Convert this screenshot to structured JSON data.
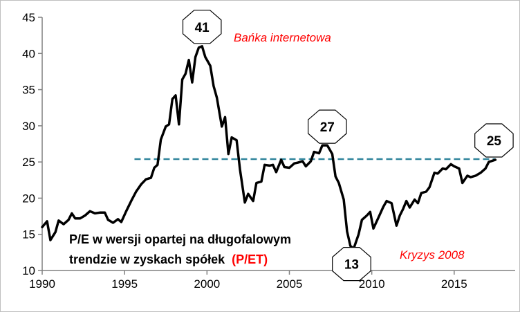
{
  "chart_data": {
    "type": "line",
    "title": "",
    "xlabel": "",
    "ylabel": "",
    "xlim": [
      1990,
      2018.7
    ],
    "ylim": [
      10,
      45
    ],
    "x_ticks": [
      "1990",
      "1995",
      "2000",
      "2005",
      "2010",
      "2015"
    ],
    "y_ticks": [
      "10",
      "15",
      "20",
      "25",
      "30",
      "35",
      "40",
      "45"
    ],
    "grid": false,
    "legend": "none",
    "line_color": "#000000",
    "reference_line": {
      "value": 25.4,
      "x_start": 1995.6,
      "x_end": 2017.5,
      "color": "#31859c",
      "style": "dashed"
    },
    "series": [
      {
        "values": [
          [
            1990.0,
            16.0
          ],
          [
            1990.3,
            16.8
          ],
          [
            1990.5,
            14.2
          ],
          [
            1990.8,
            15.3
          ],
          [
            1991.0,
            16.9
          ],
          [
            1991.3,
            16.4
          ],
          [
            1991.6,
            17.0
          ],
          [
            1991.8,
            17.9
          ],
          [
            1992.0,
            17.2
          ],
          [
            1992.3,
            17.2
          ],
          [
            1992.6,
            17.6
          ],
          [
            1992.9,
            18.2
          ],
          [
            1993.2,
            17.9
          ],
          [
            1993.5,
            18.0
          ],
          [
            1993.8,
            18.0
          ],
          [
            1994.0,
            17.0
          ],
          [
            1994.3,
            16.6
          ],
          [
            1994.6,
            17.1
          ],
          [
            1994.8,
            16.7
          ],
          [
            1995.1,
            18.2
          ],
          [
            1995.4,
            19.6
          ],
          [
            1995.7,
            20.9
          ],
          [
            1996.0,
            21.9
          ],
          [
            1996.3,
            22.6
          ],
          [
            1996.6,
            22.8
          ],
          [
            1996.8,
            24.2
          ],
          [
            1997.0,
            24.6
          ],
          [
            1997.2,
            28.1
          ],
          [
            1997.5,
            29.9
          ],
          [
            1997.7,
            30.2
          ],
          [
            1997.9,
            33.7
          ],
          [
            1998.1,
            34.2
          ],
          [
            1998.3,
            30.2
          ],
          [
            1998.5,
            36.4
          ],
          [
            1998.7,
            37.2
          ],
          [
            1998.9,
            39.1
          ],
          [
            1999.1,
            36.0
          ],
          [
            1999.3,
            39.5
          ],
          [
            1999.5,
            40.8
          ],
          [
            1999.7,
            41.0
          ],
          [
            1999.9,
            39.5
          ],
          [
            2000.2,
            38.3
          ],
          [
            2000.4,
            35.5
          ],
          [
            2000.6,
            33.9
          ],
          [
            2000.9,
            29.9
          ],
          [
            2001.1,
            31.2
          ],
          [
            2001.3,
            26.1
          ],
          [
            2001.5,
            28.4
          ],
          [
            2001.8,
            28.0
          ],
          [
            2002.0,
            24.0
          ],
          [
            2002.3,
            19.4
          ],
          [
            2002.5,
            20.6
          ],
          [
            2002.8,
            19.6
          ],
          [
            2003.0,
            22.1
          ],
          [
            2003.3,
            22.3
          ],
          [
            2003.5,
            24.6
          ],
          [
            2003.8,
            24.5
          ],
          [
            2004.0,
            24.6
          ],
          [
            2004.2,
            23.6
          ],
          [
            2004.5,
            25.3
          ],
          [
            2004.7,
            24.3
          ],
          [
            2005.0,
            24.2
          ],
          [
            2005.3,
            24.8
          ],
          [
            2005.5,
            24.9
          ],
          [
            2005.8,
            25.1
          ],
          [
            2006.0,
            24.4
          ],
          [
            2006.3,
            25.1
          ],
          [
            2006.5,
            26.4
          ],
          [
            2006.8,
            26.2
          ],
          [
            2007.0,
            27.3
          ],
          [
            2007.3,
            27.3
          ],
          [
            2007.6,
            26.1
          ],
          [
            2007.8,
            23.0
          ],
          [
            2008.0,
            22.1
          ],
          [
            2008.3,
            19.8
          ],
          [
            2008.5,
            15.4
          ],
          [
            2008.7,
            13.4
          ],
          [
            2008.9,
            13.0
          ],
          [
            2009.2,
            15.0
          ],
          [
            2009.4,
            17.0
          ],
          [
            2009.7,
            17.6
          ],
          [
            2009.9,
            18.1
          ],
          [
            2010.1,
            15.8
          ],
          [
            2010.4,
            17.3
          ],
          [
            2010.7,
            18.8
          ],
          [
            2010.9,
            19.6
          ],
          [
            2011.2,
            19.3
          ],
          [
            2011.5,
            16.2
          ],
          [
            2011.7,
            17.6
          ],
          [
            2011.9,
            18.5
          ],
          [
            2012.1,
            19.6
          ],
          [
            2012.3,
            18.7
          ],
          [
            2012.6,
            19.8
          ],
          [
            2012.8,
            19.3
          ],
          [
            2013.0,
            20.7
          ],
          [
            2013.3,
            20.9
          ],
          [
            2013.5,
            21.5
          ],
          [
            2013.8,
            23.5
          ],
          [
            2014.0,
            23.4
          ],
          [
            2014.3,
            24.1
          ],
          [
            2014.5,
            24.0
          ],
          [
            2014.8,
            24.7
          ],
          [
            2015.0,
            24.4
          ],
          [
            2015.3,
            24.1
          ],
          [
            2015.5,
            22.1
          ],
          [
            2015.8,
            23.1
          ],
          [
            2016.0,
            22.9
          ],
          [
            2016.3,
            23.1
          ],
          [
            2016.6,
            23.5
          ],
          [
            2016.9,
            24.1
          ],
          [
            2017.1,
            25.0
          ],
          [
            2017.5,
            25.3
          ]
        ]
      }
    ],
    "annotations": [
      {
        "id": "peak-2000",
        "label": "41",
        "x": 1999.7,
        "y": 41
      },
      {
        "id": "peak-2007",
        "label": "27",
        "x": 2007.3,
        "y": 27.3
      },
      {
        "id": "low-2009",
        "label": "13",
        "x": 2008.9,
        "y": 13.0
      },
      {
        "id": "last-2017",
        "label": "25",
        "x": 2017.5,
        "y": 25.3
      }
    ],
    "text_annotations": {
      "bubble_red": "Bańka internetowa",
      "crisis_red": "Kryzys 2008",
      "description_line1": "P/E w wersji opartej na długofalowym",
      "description_line2": "trendzie w zyskach spółek",
      "description_highlight": "(P/ET)",
      "red_color": "#ff0000"
    }
  }
}
